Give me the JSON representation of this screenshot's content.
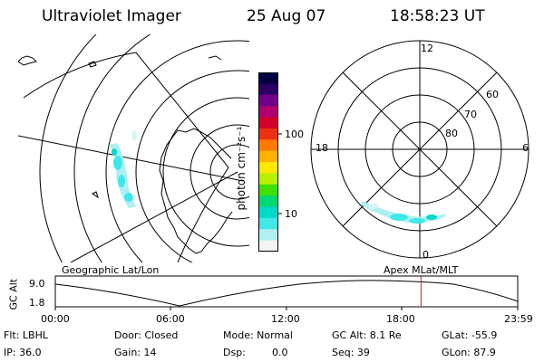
{
  "header": {
    "instrument": "Ultraviolet Imager",
    "date": "25 Aug 07",
    "time": "18:58:23 UT"
  },
  "colorbar": {
    "label": "photon cm⁻²s⁻¹",
    "ticks": [
      "100",
      "10"
    ],
    "scale": "log",
    "colors": [
      "#000040",
      "#2a0060",
      "#70008a",
      "#b00070",
      "#d4002c",
      "#ee3010",
      "#ff7a00",
      "#ffb300",
      "#ffe800",
      "#b8f000",
      "#40e000",
      "#00d870",
      "#00d8c8",
      "#40e8e8",
      "#b0f0f0",
      "#f4f4f4"
    ]
  },
  "polar_plot": {
    "hour_labels": {
      "top": "12",
      "left": "18",
      "right": "6",
      "bottom": "0"
    },
    "lat_labels": [
      "60",
      "70",
      "80"
    ]
  },
  "timeline": {
    "left_title": "Geographic Lat/Lon",
    "right_title": "Apex MLat/MLT",
    "axis_label": "GC Alt",
    "y_top": "9.0",
    "y_bottom": "1.8",
    "x_ticks": [
      "00:00",
      "06:00",
      "12:00",
      "18:00",
      "23:59"
    ],
    "marker_color": "#e02020",
    "current_time_fraction": 0.791
  },
  "info": {
    "filter": "Flt: LBHL",
    "door": "Door: Closed",
    "mode": "Mode: Normal",
    "gc_alt": "GC Alt: 8.1 Re",
    "glat": "GLat: -55.9",
    "ip": "IP: 36.0",
    "gain": "Gain: 14",
    "dsp_label": "Dsp:",
    "dsp_value": "0.0",
    "seq": "Seq: 39",
    "glon": "GLon:  87.9"
  }
}
